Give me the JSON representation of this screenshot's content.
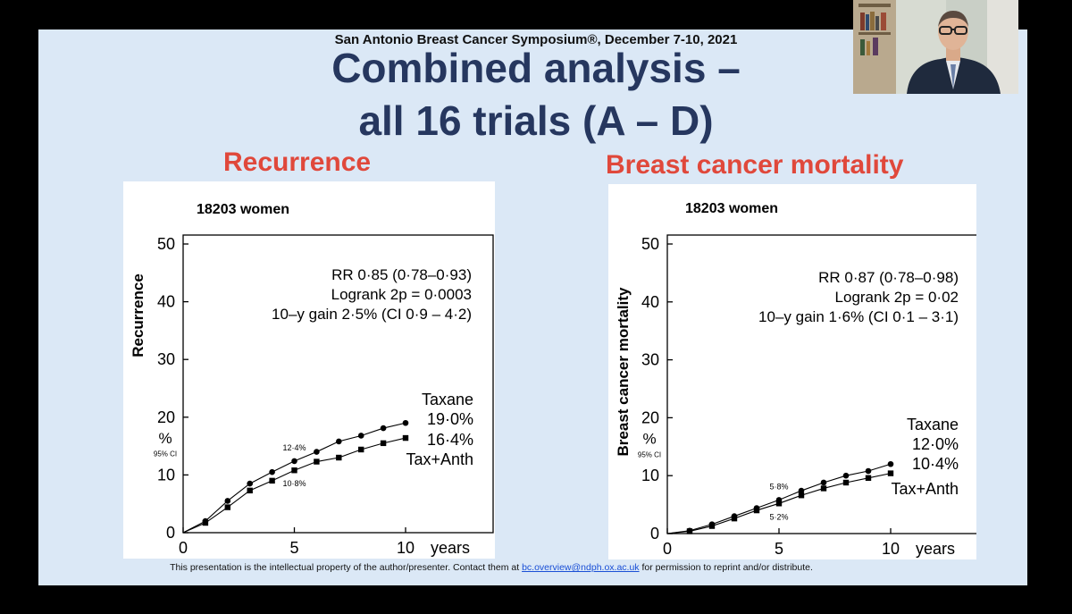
{
  "slide": {
    "conference": "San Antonio Breast Cancer Symposium®, December 7-10, 2021",
    "title_line1": "Combined analysis –",
    "title_line2": "all 16 trials (A – D)",
    "footer_text_before": "This presentation is the intellectual property of the author/presenter. Contact them at",
    "footer_email": "bc.overview@ndph.ox.ac.uk",
    "footer_text_after": "for permission to reprint and/or distribute."
  },
  "chart_data": [
    {
      "type": "line",
      "title": "Recurrence",
      "population": "18203 women",
      "ylabel": "Recurrence",
      "yunit": "%",
      "yunit_note": "95% CI",
      "xlabel": "years",
      "xlim": [
        0,
        10
      ],
      "ylim": [
        0,
        50
      ],
      "xticks": [
        0,
        5,
        10
      ],
      "yticks": [
        0,
        10,
        20,
        30,
        40,
        50
      ],
      "stats": [
        "RR 0·85 (0·78–0·93)",
        "Logrank 2p = 0·0003",
        "10–y gain 2·5% (CI 0·9 – 4·2)"
      ],
      "series": [
        {
          "name": "Taxane",
          "marker": "circle",
          "end_label": "19·0%",
          "x": [
            0,
            1,
            2,
            3,
            4,
            5,
            6,
            7,
            8,
            9,
            10
          ],
          "values": [
            0,
            2.0,
            5.5,
            8.5,
            10.5,
            12.4,
            14.0,
            15.8,
            16.8,
            18.1,
            19.0
          ]
        },
        {
          "name": "Tax+Anth",
          "marker": "square",
          "end_label": "16·4%",
          "x": [
            0,
            1,
            2,
            3,
            4,
            5,
            6,
            7,
            8,
            9,
            10
          ],
          "values": [
            0,
            1.7,
            4.4,
            7.3,
            9.0,
            10.8,
            12.3,
            13.0,
            14.4,
            15.5,
            16.4
          ]
        }
      ],
      "annotations": [
        {
          "text": "12·4%",
          "x": 5,
          "y": 12.4,
          "anchor": "above"
        },
        {
          "text": "10·8%",
          "x": 5,
          "y": 10.8,
          "anchor": "below"
        }
      ]
    },
    {
      "type": "line",
      "title": "Breast cancer mortality",
      "population": "18203 women",
      "ylabel": "Breast cancer mortality",
      "yunit": "%",
      "yunit_note": "95% CI",
      "xlabel": "years",
      "xlim": [
        0,
        10
      ],
      "ylim": [
        0,
        50
      ],
      "xticks": [
        0,
        5,
        10
      ],
      "yticks": [
        0,
        10,
        20,
        30,
        40,
        50
      ],
      "stats": [
        "RR 0·87 (0·78–0·98)",
        "Logrank 2p = 0·02",
        "10–y gain 1·6% (CI 0·1 – 3·1)"
      ],
      "series": [
        {
          "name": "Taxane",
          "marker": "circle",
          "end_label": "12·0%",
          "x": [
            0,
            1,
            2,
            3,
            4,
            5,
            6,
            7,
            8,
            9,
            10
          ],
          "values": [
            0,
            0.5,
            1.6,
            3.0,
            4.4,
            5.8,
            7.4,
            8.8,
            10.0,
            10.8,
            12.0
          ]
        },
        {
          "name": "Tax+Anth",
          "marker": "square",
          "end_label": "10·4%",
          "x": [
            0,
            1,
            2,
            3,
            4,
            5,
            6,
            7,
            8,
            9,
            10
          ],
          "values": [
            0,
            0.4,
            1.3,
            2.6,
            4.0,
            5.2,
            6.6,
            7.8,
            8.8,
            9.6,
            10.4
          ]
        }
      ],
      "annotations": [
        {
          "text": "5·8%",
          "x": 5,
          "y": 5.8,
          "anchor": "above"
        },
        {
          "text": "5·2%",
          "x": 5,
          "y": 5.2,
          "anchor": "below"
        }
      ]
    }
  ]
}
